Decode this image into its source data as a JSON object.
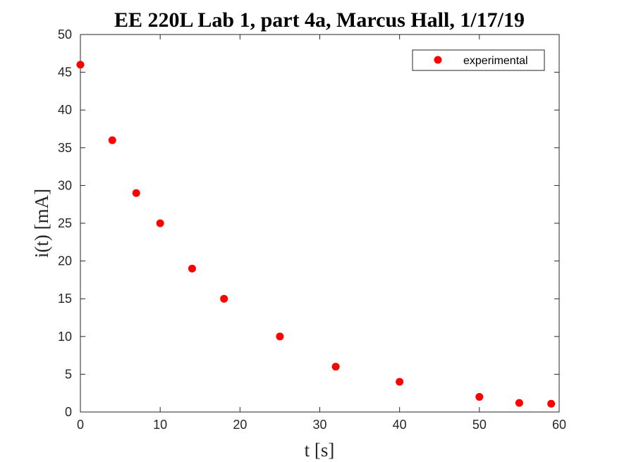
{
  "chart_data": {
    "type": "scatter",
    "title": "EE 220L Lab 1, part 4a, Marcus Hall, 1/17/19",
    "xlabel": "t [s]",
    "ylabel": "i(t)  [mA]",
    "xlim": [
      0,
      60
    ],
    "ylim": [
      0,
      50
    ],
    "xticks": [
      0,
      10,
      20,
      30,
      40,
      50,
      60
    ],
    "yticks": [
      0,
      5,
      10,
      15,
      20,
      25,
      30,
      35,
      40,
      45,
      50
    ],
    "grid": false,
    "legend_position": "top-right",
    "series": [
      {
        "name": "experimental",
        "color": "#ff0000",
        "marker": "filled-circle",
        "x": [
          0,
          4,
          7,
          10,
          14,
          18,
          25,
          32,
          40,
          50,
          55,
          59
        ],
        "y": [
          46,
          36,
          29,
          25,
          19,
          15,
          10,
          6,
          4,
          2,
          1.2,
          1.1
        ]
      }
    ]
  }
}
